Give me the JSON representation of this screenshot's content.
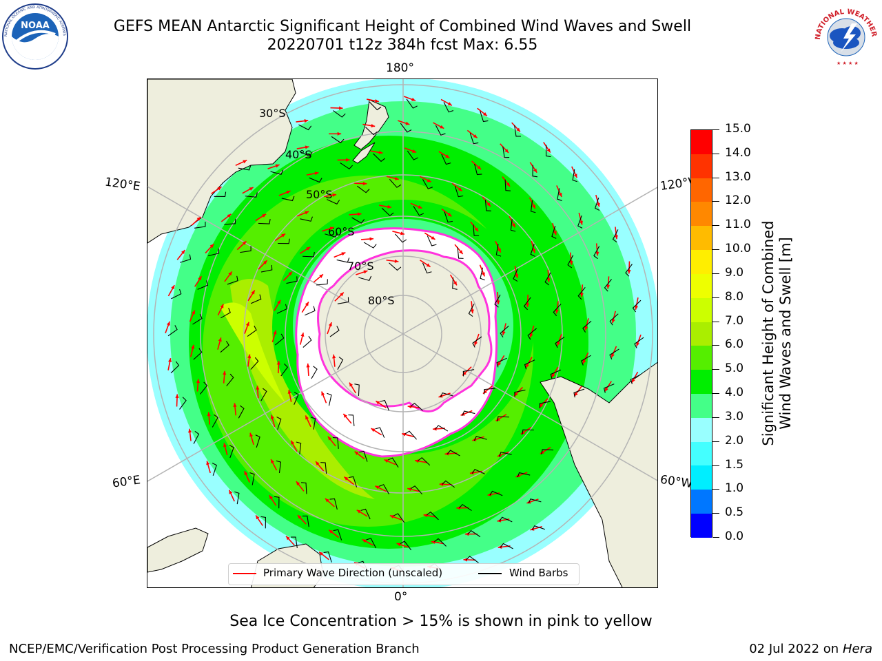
{
  "header": {
    "title_line1": "GEFS MEAN Antarctic Significant Height of Combined Wind Waves and Swell",
    "title_line2": "20220701 t12z 384h fcst   Max: 6.55"
  },
  "logos": {
    "left": {
      "text": "NOAA",
      "ring_text": "NATIONAL OCEANIC AND ATMOSPHERIC ADMINISTRATION · U.S. DEPARTMENT OF COMMERCE",
      "icon": "noaa-logo-icon"
    },
    "right": {
      "text": "NATIONAL WEATHER SERVICE",
      "icon": "nws-logo-icon"
    }
  },
  "map": {
    "projection": "south-polar-stereographic",
    "longitude_labels": {
      "top": "180°",
      "bottom": "0°",
      "upper_left": "120°E",
      "upper_right": "120°W",
      "lower_left": "60°E",
      "lower_right": "60°W"
    },
    "latitude_labels": [
      "30°S",
      "40°S",
      "50°S",
      "60°S",
      "70°S",
      "80°S"
    ],
    "colors": {
      "land": "#eeeedd",
      "ice": "#ffffff",
      "ice_edge": "#ff33dd",
      "coast": "#000000",
      "grid": "#b4b4b4"
    }
  },
  "legend": {
    "wave_label": "Primary Wave Direction (unscaled)",
    "wind_label": "Wind Barbs",
    "wave_color": "#ff0000",
    "wind_color": "#000000"
  },
  "colorbar": {
    "label_line1": "Significant Height of Combined",
    "label_line2": "Wind Waves and Swell [m]",
    "ticks": [
      "0.0",
      "0.5",
      "1.0",
      "1.5",
      "2.0",
      "3.0",
      "4.0",
      "5.0",
      "6.0",
      "7.0",
      "8.0",
      "9.0",
      "10.0",
      "11.0",
      "12.0",
      "13.0",
      "14.0",
      "15.0"
    ],
    "colors": [
      "#0000ff",
      "#0077ff",
      "#00eeff",
      "#44ffff",
      "#99ffff",
      "#44ff88",
      "#00ee00",
      "#55ee00",
      "#aaee00",
      "#ccff00",
      "#eeff00",
      "#ffee00",
      "#ffbb00",
      "#ff8800",
      "#ff6600",
      "#ff3300",
      "#ff0000"
    ]
  },
  "footer": {
    "sea_ice_note": "Sea Ice Concentration > 15% is shown in pink to yellow",
    "producer": "NCEP/EMC/Verification Post Processing Product Generation Branch",
    "date_text": "02 Jul 2022 on ",
    "machine": "Hera"
  }
}
